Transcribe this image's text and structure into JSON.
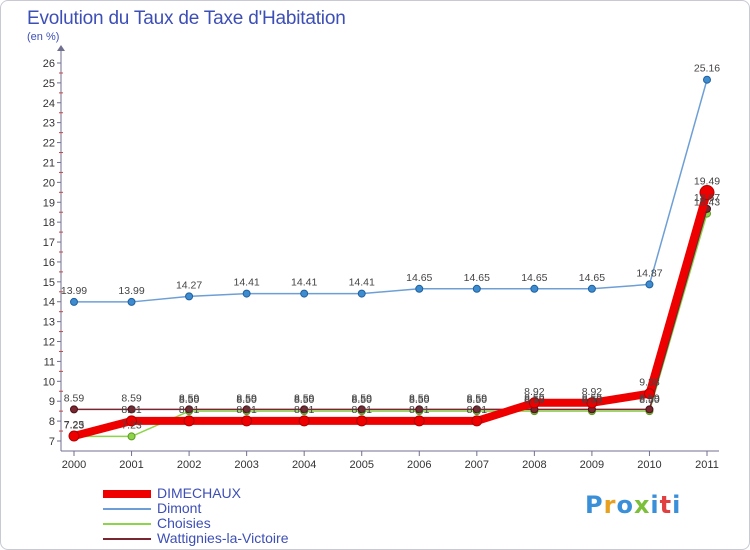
{
  "chart_data": {
    "type": "line",
    "title": "Evolution du Taux de Taxe d'Habitation",
    "ylabel": "(en %)",
    "xlabel": "",
    "categories": [
      "2000",
      "2001",
      "2002",
      "2003",
      "2004",
      "2005",
      "2006",
      "2007",
      "2008",
      "2009",
      "2010",
      "2011"
    ],
    "ylim": [
      7,
      26
    ],
    "yticks": [
      "7",
      "8",
      "9",
      "10",
      "11",
      "12",
      "13",
      "14",
      "15",
      "16",
      "17",
      "18",
      "19",
      "20",
      "21",
      "22",
      "23",
      "24",
      "25",
      "26"
    ],
    "grid": false,
    "series": [
      {
        "name": "DIMECHAUX",
        "color": "#ee0000",
        "values": [
          7.25,
          8.01,
          8.01,
          8.01,
          8.01,
          8.01,
          8.01,
          8.01,
          8.92,
          8.92,
          9.38,
          19.49
        ],
        "labels": [
          "7.25",
          "8.01",
          "8.01",
          "8.01",
          "8.01",
          "8.01",
          "8.01",
          "8.01",
          "8.92",
          "8.92",
          "9.38",
          "19.49"
        ]
      },
      {
        "name": "Dimont",
        "color": "#6d9fd6",
        "values": [
          13.99,
          13.99,
          14.27,
          14.41,
          14.41,
          14.41,
          14.65,
          14.65,
          14.65,
          14.65,
          14.87,
          25.16
        ],
        "labels": [
          "13.99",
          "13.99",
          "14.27",
          "14.41",
          "14.41",
          "14.41",
          "14.65",
          "14.65",
          "14.65",
          "14.65",
          "14.87",
          "25.16"
        ]
      },
      {
        "name": "Choisies",
        "color": "#8ed44a",
        "values": [
          7.23,
          7.23,
          8.5,
          8.5,
          8.5,
          8.5,
          8.5,
          8.5,
          8.5,
          8.5,
          8.5,
          18.43
        ],
        "labels": [
          "7.23",
          "7.23",
          "8.50",
          "8.50",
          "8.50",
          "8.50",
          "8.50",
          "8.50",
          "8.50",
          "8.50",
          "8.50",
          "18.43"
        ]
      },
      {
        "name": "Wattignies-la-Victoire",
        "color": "#7a2630",
        "values": [
          8.59,
          8.59,
          8.59,
          8.59,
          8.59,
          8.59,
          8.59,
          8.59,
          8.59,
          8.59,
          8.59,
          18.67
        ],
        "labels": [
          "8.59",
          "8.59",
          "8.59",
          "8.59",
          "8.59",
          "8.59",
          "8.59",
          "8.59",
          "8.59",
          "8.59",
          "8.59",
          "18.67"
        ]
      }
    ]
  },
  "logo": {
    "text": "Proxiti",
    "colors": [
      "#3a8fd9",
      "#e8a020",
      "#3a8fd9",
      "#7bbf3a",
      "#3a8fd9",
      "#e04040",
      "#3a8fd9"
    ]
  }
}
